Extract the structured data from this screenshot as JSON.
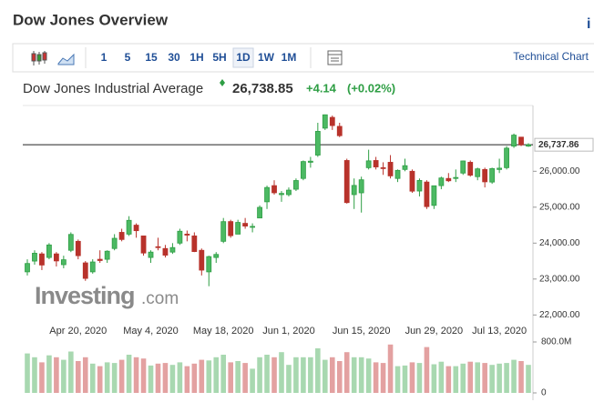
{
  "header": {
    "title": "Dow Jones Overview",
    "info_icon": "i"
  },
  "toolbar": {
    "intervals": [
      "1",
      "5",
      "15",
      "30",
      "1H",
      "5H",
      "1D",
      "1W",
      "1M"
    ],
    "active": "1D",
    "technical_chart": "Technical Chart"
  },
  "quote": {
    "name": "Dow Jones Industrial Average",
    "price": "26,738.85",
    "change": "+4.14",
    "change_percent": "(+0.02%)"
  },
  "watermark": {
    "brand": "Investing",
    "suffix": ".com"
  },
  "chart_data": {
    "type": "candlestick",
    "categories": [
      null,
      null,
      null,
      null,
      null,
      null,
      null,
      "Apr 20, 2020",
      null,
      null,
      null,
      null,
      null,
      null,
      null,
      null,
      null,
      "May 4, 2020",
      null,
      null,
      null,
      null,
      null,
      null,
      null,
      null,
      null,
      "May 18, 2020",
      null,
      null,
      null,
      null,
      null,
      null,
      null,
      null,
      "Jun 1, 2020",
      null,
      null,
      null,
      null,
      null,
      null,
      null,
      null,
      null,
      "Jun 15, 2020",
      null,
      null,
      null,
      null,
      null,
      null,
      null,
      null,
      null,
      "Jun 29, 2020",
      null,
      null,
      null,
      null,
      null,
      null,
      null,
      null,
      "Jul 13, 2020",
      null,
      null,
      null,
      null
    ],
    "open": [
      23200,
      23500,
      23700,
      23600,
      23700,
      23400,
      23800,
      24050,
      23450,
      23200,
      23550,
      23550,
      23850,
      24300,
      24250,
      24500,
      24200,
      23600,
      23900,
      23850,
      23750,
      24000,
      24250,
      24200,
      23800,
      23200,
      23600,
      24050,
      24600,
      24250,
      24550,
      24450,
      24700,
      25150,
      25600,
      25350,
      25350,
      25500,
      25800,
      26250,
      26450,
      27200,
      27500,
      27250,
      26300,
      25350,
      25400,
      26100,
      26300,
      26100,
      26250,
      25800,
      26050,
      26000,
      25450,
      25700,
      25050,
      25600,
      25800,
      25800,
      25950,
      26250,
      25850,
      26050,
      25700,
      26050,
      26100,
      26700,
      26950,
      26700
    ],
    "high": [
      23550,
      23800,
      23750,
      24000,
      23750,
      23650,
      24300,
      24100,
      23500,
      23550,
      23800,
      23800,
      24250,
      24400,
      24750,
      24550,
      24200,
      23800,
      24150,
      23950,
      24000,
      24400,
      24350,
      24300,
      23850,
      23650,
      23750,
      24700,
      24650,
      24650,
      24700,
      24550,
      25050,
      25600,
      25750,
      25450,
      25550,
      25800,
      26300,
      26400,
      27350,
      27580,
      27550,
      27350,
      26350,
      25800,
      25850,
      26600,
      26400,
      26250,
      26450,
      26050,
      26350,
      26050,
      25800,
      25750,
      25600,
      25850,
      25950,
      26050,
      26300,
      26300,
      26100,
      26100,
      26100,
      26350,
      26700,
      27050,
      26950,
      26780
    ],
    "low": [
      23100,
      23400,
      23250,
      23550,
      23350,
      23300,
      23750,
      23550,
      22950,
      23150,
      23450,
      23450,
      23800,
      24050,
      24200,
      24150,
      23650,
      23450,
      23800,
      23600,
      23700,
      23950,
      24050,
      23750,
      23100,
      22800,
      23450,
      24000,
      24150,
      24250,
      24400,
      24300,
      24700,
      24950,
      25350,
      25150,
      25300,
      25450,
      25750,
      26100,
      26400,
      27150,
      27150,
      26950,
      25100,
      24950,
      24850,
      26050,
      26050,
      25900,
      25800,
      25700,
      26000,
      25400,
      25300,
      24950,
      24950,
      25500,
      25700,
      25700,
      25900,
      25850,
      25750,
      25550,
      25650,
      25950,
      26050,
      26650,
      26700,
      26680
    ],
    "close": [
      23433,
      23719,
      23390,
      23949,
      23504,
      23537,
      24242,
      23650,
      23018,
      23475,
      23515,
      23775,
      24134,
      24101,
      24634,
      24346,
      23724,
      23750,
      23883,
      23664,
      23876,
      24331,
      24222,
      23765,
      23248,
      23625,
      23685,
      24598,
      24207,
      24576,
      24474,
      24465,
      24995,
      25548,
      25401,
      25383,
      25475,
      25742,
      26270,
      26281,
      27111,
      27572,
      27272,
      26990,
      25128,
      25606,
      25763,
      26290,
      26120,
      26080,
      25871,
      26025,
      26156,
      25446,
      25745,
      25016,
      25596,
      25813,
      25735,
      25827,
      26287,
      25890,
      26067,
      25706,
      26075,
      26086,
      26643,
      27006,
      26735,
      26739
    ],
    "up_color": "#2e9e44",
    "down_color": "#b8322b",
    "ylim": [
      21780,
      27780
    ],
    "yticks": [
      {
        "value": 22000,
        "label": "22,000.00"
      },
      {
        "value": 23000,
        "label": "23,000.00"
      },
      {
        "value": 24000,
        "label": "24,000.00"
      },
      {
        "value": 25000,
        "label": "25,000.00"
      },
      {
        "value": 26000,
        "label": "26,000.00"
      }
    ],
    "current": {
      "value": 26737.86,
      "label": "26,737.86"
    },
    "volume": {
      "values": [
        620,
        560,
        480,
        590,
        560,
        520,
        650,
        500,
        560,
        460,
        420,
        480,
        470,
        520,
        600,
        560,
        540,
        430,
        460,
        470,
        440,
        480,
        420,
        460,
        520,
        510,
        560,
        600,
        480,
        500,
        470,
        380,
        560,
        600,
        560,
        640,
        440,
        560,
        560,
        560,
        700,
        520,
        560,
        500,
        640,
        560,
        560,
        540,
        480,
        470,
        760,
        420,
        430,
        480,
        470,
        720,
        450,
        490,
        420,
        420,
        460,
        490,
        480,
        470,
        440,
        460,
        470,
        520,
        500,
        440
      ],
      "up_color": "#a8d8b0",
      "down_color": "#e3a1a1",
      "ylim": [
        0,
        800
      ],
      "yticks": [
        0,
        {
          "value": 800,
          "label": "800.0M"
        }
      ]
    }
  }
}
